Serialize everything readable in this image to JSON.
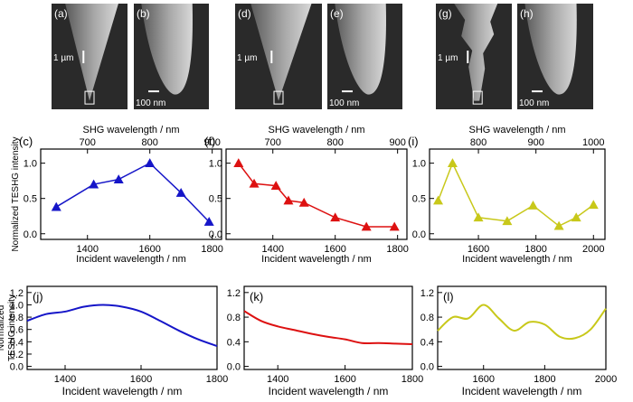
{
  "sem_panels": [
    {
      "label": "(a)",
      "scale": "1 µm",
      "shape": "tip",
      "box": true
    },
    {
      "label": "(b)",
      "scale": "100 nm",
      "shape": "zoom"
    },
    {
      "label": "(d)",
      "scale": "1 µm",
      "shape": "tip",
      "box": true
    },
    {
      "label": "(e)",
      "scale": "100 nm",
      "shape": "zoom"
    },
    {
      "label": "(g)",
      "scale": "1 µm",
      "shape": "rough",
      "box": true
    },
    {
      "label": "(h)",
      "scale": "100 nm",
      "shape": "zoom"
    }
  ],
  "colors": {
    "blue": "#1515c8",
    "red": "#dd1111",
    "yellow": "#c8c81a",
    "sem_bg": "#2a2a2a",
    "sem_tip": "#9a9a9a"
  },
  "chart_data": [
    {
      "type": "line",
      "panel": "(c)",
      "color": "blue",
      "marker": "triangle",
      "x": [
        1300,
        1420,
        1500,
        1600,
        1700,
        1790
      ],
      "y": [
        0.38,
        0.7,
        0.77,
        1.0,
        0.58,
        0.17
      ],
      "xlim": [
        1250,
        1830
      ],
      "ylim": [
        -0.08,
        1.2
      ],
      "xticks": [
        1400,
        1600,
        1800
      ],
      "yticks": [
        0.0,
        0.5,
        1.0
      ],
      "top_axis_label": "SHG wavelength / nm",
      "top_ticks": [
        700,
        800,
        900
      ],
      "xlabel": "Incident wavelength / nm",
      "ylabel": "Normalized TESHG intensity"
    },
    {
      "type": "line",
      "panel": "(f)",
      "color": "red",
      "marker": "triangle",
      "x": [
        1290,
        1340,
        1410,
        1450,
        1500,
        1600,
        1700,
        1790
      ],
      "y": [
        1.0,
        0.71,
        0.68,
        0.47,
        0.44,
        0.23,
        0.1,
        0.1
      ],
      "xlim": [
        1250,
        1830
      ],
      "ylim": [
        -0.08,
        1.2
      ],
      "xticks": [
        1400,
        1600,
        1800
      ],
      "yticks": [
        0.0,
        0.5,
        1.0
      ],
      "top_axis_label": "SHG wavelength / nm",
      "top_ticks": [
        700,
        800,
        900
      ],
      "xlabel": "Incident wavelength / nm"
    },
    {
      "type": "line",
      "panel": "(i)",
      "color": "yellow",
      "marker": "triangle",
      "x": [
        1460,
        1510,
        1600,
        1700,
        1790,
        1880,
        1940,
        2000
      ],
      "y": [
        0.47,
        1.0,
        0.23,
        0.18,
        0.4,
        0.11,
        0.23,
        0.41
      ],
      "xlim": [
        1430,
        2040
      ],
      "ylim": [
        -0.08,
        1.2
      ],
      "xticks": [
        1600,
        1800,
        2000
      ],
      "yticks": [
        0.0,
        0.5,
        1.0
      ],
      "top_axis_label": "SHG wavelength / nm",
      "top_ticks": [
        800,
        900,
        1000
      ],
      "xlabel": "Incident wavelength / nm"
    },
    {
      "type": "line",
      "panel": "(j)",
      "color": "blue",
      "x": [
        1300,
        1350,
        1400,
        1450,
        1500,
        1550,
        1600,
        1650,
        1700,
        1750,
        1800
      ],
      "y": [
        0.74,
        0.85,
        0.89,
        0.97,
        1.0,
        0.97,
        0.89,
        0.74,
        0.58,
        0.44,
        0.33
      ],
      "xlim": [
        1300,
        1800
      ],
      "ylim": [
        -0.05,
        1.3
      ],
      "xticks": [
        1400,
        1600,
        1800
      ],
      "yticks": [
        0.0,
        0.2,
        0.4,
        0.6,
        0.8,
        1.0,
        1.2
      ],
      "xlabel": "Incident wavelength / nm",
      "ylabel": "Normalized TESHG intensity"
    },
    {
      "type": "line",
      "panel": "(k)",
      "color": "red",
      "x": [
        1300,
        1350,
        1400,
        1450,
        1500,
        1550,
        1600,
        1650,
        1700,
        1750,
        1800
      ],
      "y": [
        0.9,
        0.74,
        0.65,
        0.59,
        0.53,
        0.48,
        0.44,
        0.38,
        0.38,
        0.37,
        0.36
      ],
      "xlim": [
        1300,
        1800
      ],
      "ylim": [
        -0.05,
        1.3
      ],
      "xticks": [
        1400,
        1600,
        1800
      ],
      "yticks": [
        0.0,
        0.4,
        0.8,
        1.2
      ],
      "xlabel": "Incident wavelength / nm"
    },
    {
      "type": "line",
      "panel": "(l)",
      "color": "yellow",
      "x": [
        1450,
        1500,
        1550,
        1600,
        1650,
        1700,
        1750,
        1800,
        1850,
        1900,
        1950,
        2000
      ],
      "y": [
        0.58,
        0.8,
        0.78,
        1.0,
        0.78,
        0.58,
        0.72,
        0.68,
        0.48,
        0.46,
        0.6,
        0.94
      ],
      "xlim": [
        1450,
        2000
      ],
      "ylim": [
        -0.05,
        1.3
      ],
      "xticks": [
        1600,
        1800,
        2000
      ],
      "yticks": [
        0.0,
        0.4,
        0.8,
        1.2
      ],
      "xlabel": "Incident wavelength / nm"
    }
  ]
}
